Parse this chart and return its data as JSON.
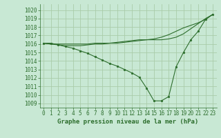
{
  "bg_color": "#c8e8d4",
  "grid_color": "#aaccaa",
  "line_color": "#2d6e2d",
  "marker_color": "#2d6e2d",
  "xlabel": "Graphe pression niveau de la mer (hPa)",
  "xlabel_fontsize": 6.5,
  "tick_fontsize": 5.5,
  "ylim": [
    1008.5,
    1020.7
  ],
  "xlim": [
    -0.5,
    23.5
  ],
  "yticks": [
    1009,
    1010,
    1011,
    1012,
    1013,
    1014,
    1015,
    1016,
    1017,
    1018,
    1019,
    1020
  ],
  "xticks": [
    0,
    1,
    2,
    3,
    4,
    5,
    6,
    7,
    8,
    9,
    10,
    11,
    12,
    13,
    14,
    15,
    16,
    17,
    18,
    19,
    20,
    21,
    22,
    23
  ],
  "s1": [
    1016.1,
    1016.1,
    1015.9,
    1015.7,
    1015.5,
    1015.2,
    1014.9,
    1014.5,
    1014.1,
    1013.7,
    1013.4,
    1013.0,
    1012.6,
    1012.1,
    1010.8,
    1009.3,
    1009.3,
    1009.8,
    1013.3,
    1015.0,
    1016.5,
    1017.5,
    1018.9,
    1019.5
  ],
  "s2": [
    1016.1,
    1016.0,
    1016.0,
    1016.0,
    1016.0,
    1016.0,
    1016.0,
    1016.1,
    1016.1,
    1016.1,
    1016.2,
    1016.3,
    1016.4,
    1016.5,
    1016.5,
    1016.5,
    1016.5,
    1016.6,
    1016.8,
    1017.2,
    1017.8,
    1018.4,
    1019.0,
    1019.5
  ],
  "s3": [
    1016.1,
    1016.0,
    1015.9,
    1015.8,
    1015.8,
    1015.8,
    1015.9,
    1016.0,
    1016.0,
    1016.1,
    1016.1,
    1016.2,
    1016.3,
    1016.4,
    1016.5,
    1016.6,
    1016.8,
    1017.1,
    1017.5,
    1017.9,
    1018.2,
    1018.5,
    1018.9,
    1019.5
  ]
}
